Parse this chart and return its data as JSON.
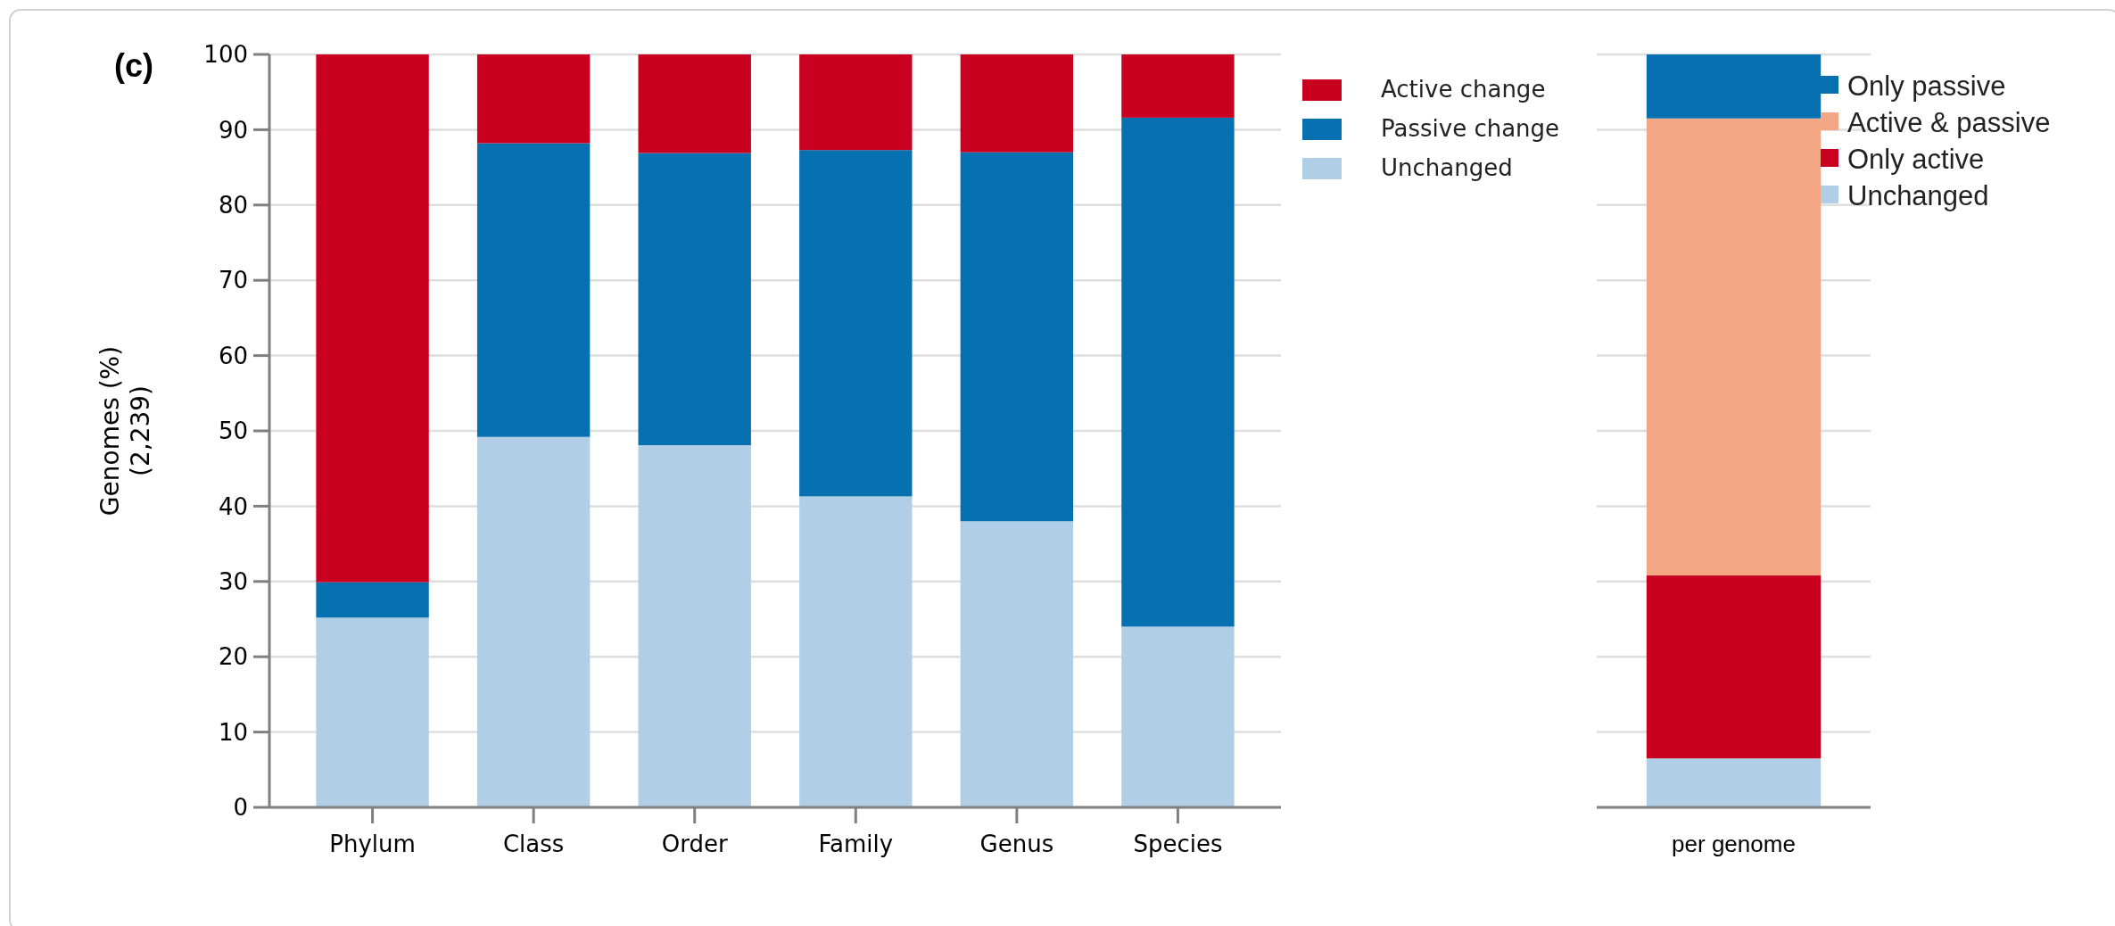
{
  "chart_data": [
    {
      "type": "bar",
      "stacked": true,
      "annotations": [
        "(c)"
      ],
      "ylabel": "Genomes (%)\n(2,239)",
      "categories": [
        "Phylum",
        "Class",
        "Order",
        "Family",
        "Genus",
        "Species"
      ],
      "ylim": [
        0,
        100
      ],
      "yticks": [
        0,
        10,
        20,
        30,
        40,
        50,
        60,
        70,
        80,
        90,
        100
      ],
      "grid": "y",
      "legend": "top right",
      "series": [
        {
          "name": "Unchanged",
          "color": "#b0cfe7",
          "values": [
            25.2,
            49.2,
            48.1,
            41.3,
            38.0,
            24.0
          ]
        },
        {
          "name": "Passive change",
          "color": "#0770b0",
          "values": [
            4.7,
            39.0,
            38.8,
            46.0,
            49.0,
            67.6
          ]
        },
        {
          "name": "Active change",
          "color": "#c90020",
          "values": [
            70.1,
            11.8,
            13.1,
            12.7,
            13.0,
            8.4
          ]
        }
      ]
    },
    {
      "type": "bar",
      "stacked": true,
      "categories": [
        "per genome"
      ],
      "ylim": [
        0,
        100
      ],
      "yticks": [
        0,
        10,
        20,
        30,
        40,
        50,
        60,
        70,
        80,
        90,
        100
      ],
      "tick_labels": "x",
      "grid": "y",
      "legend": "top right",
      "series": [
        {
          "name": "Unchanged",
          "color": "#b0cfe7",
          "values": [
            6.5
          ]
        },
        {
          "name": "Only active",
          "color": "#c90020",
          "values": [
            24.3
          ]
        },
        {
          "name": "Active & passive",
          "color": "#f3a683",
          "values": [
            60.7
          ]
        },
        {
          "name": "Only passive",
          "color": "#0770b0",
          "values": [
            8.5
          ]
        }
      ]
    }
  ]
}
